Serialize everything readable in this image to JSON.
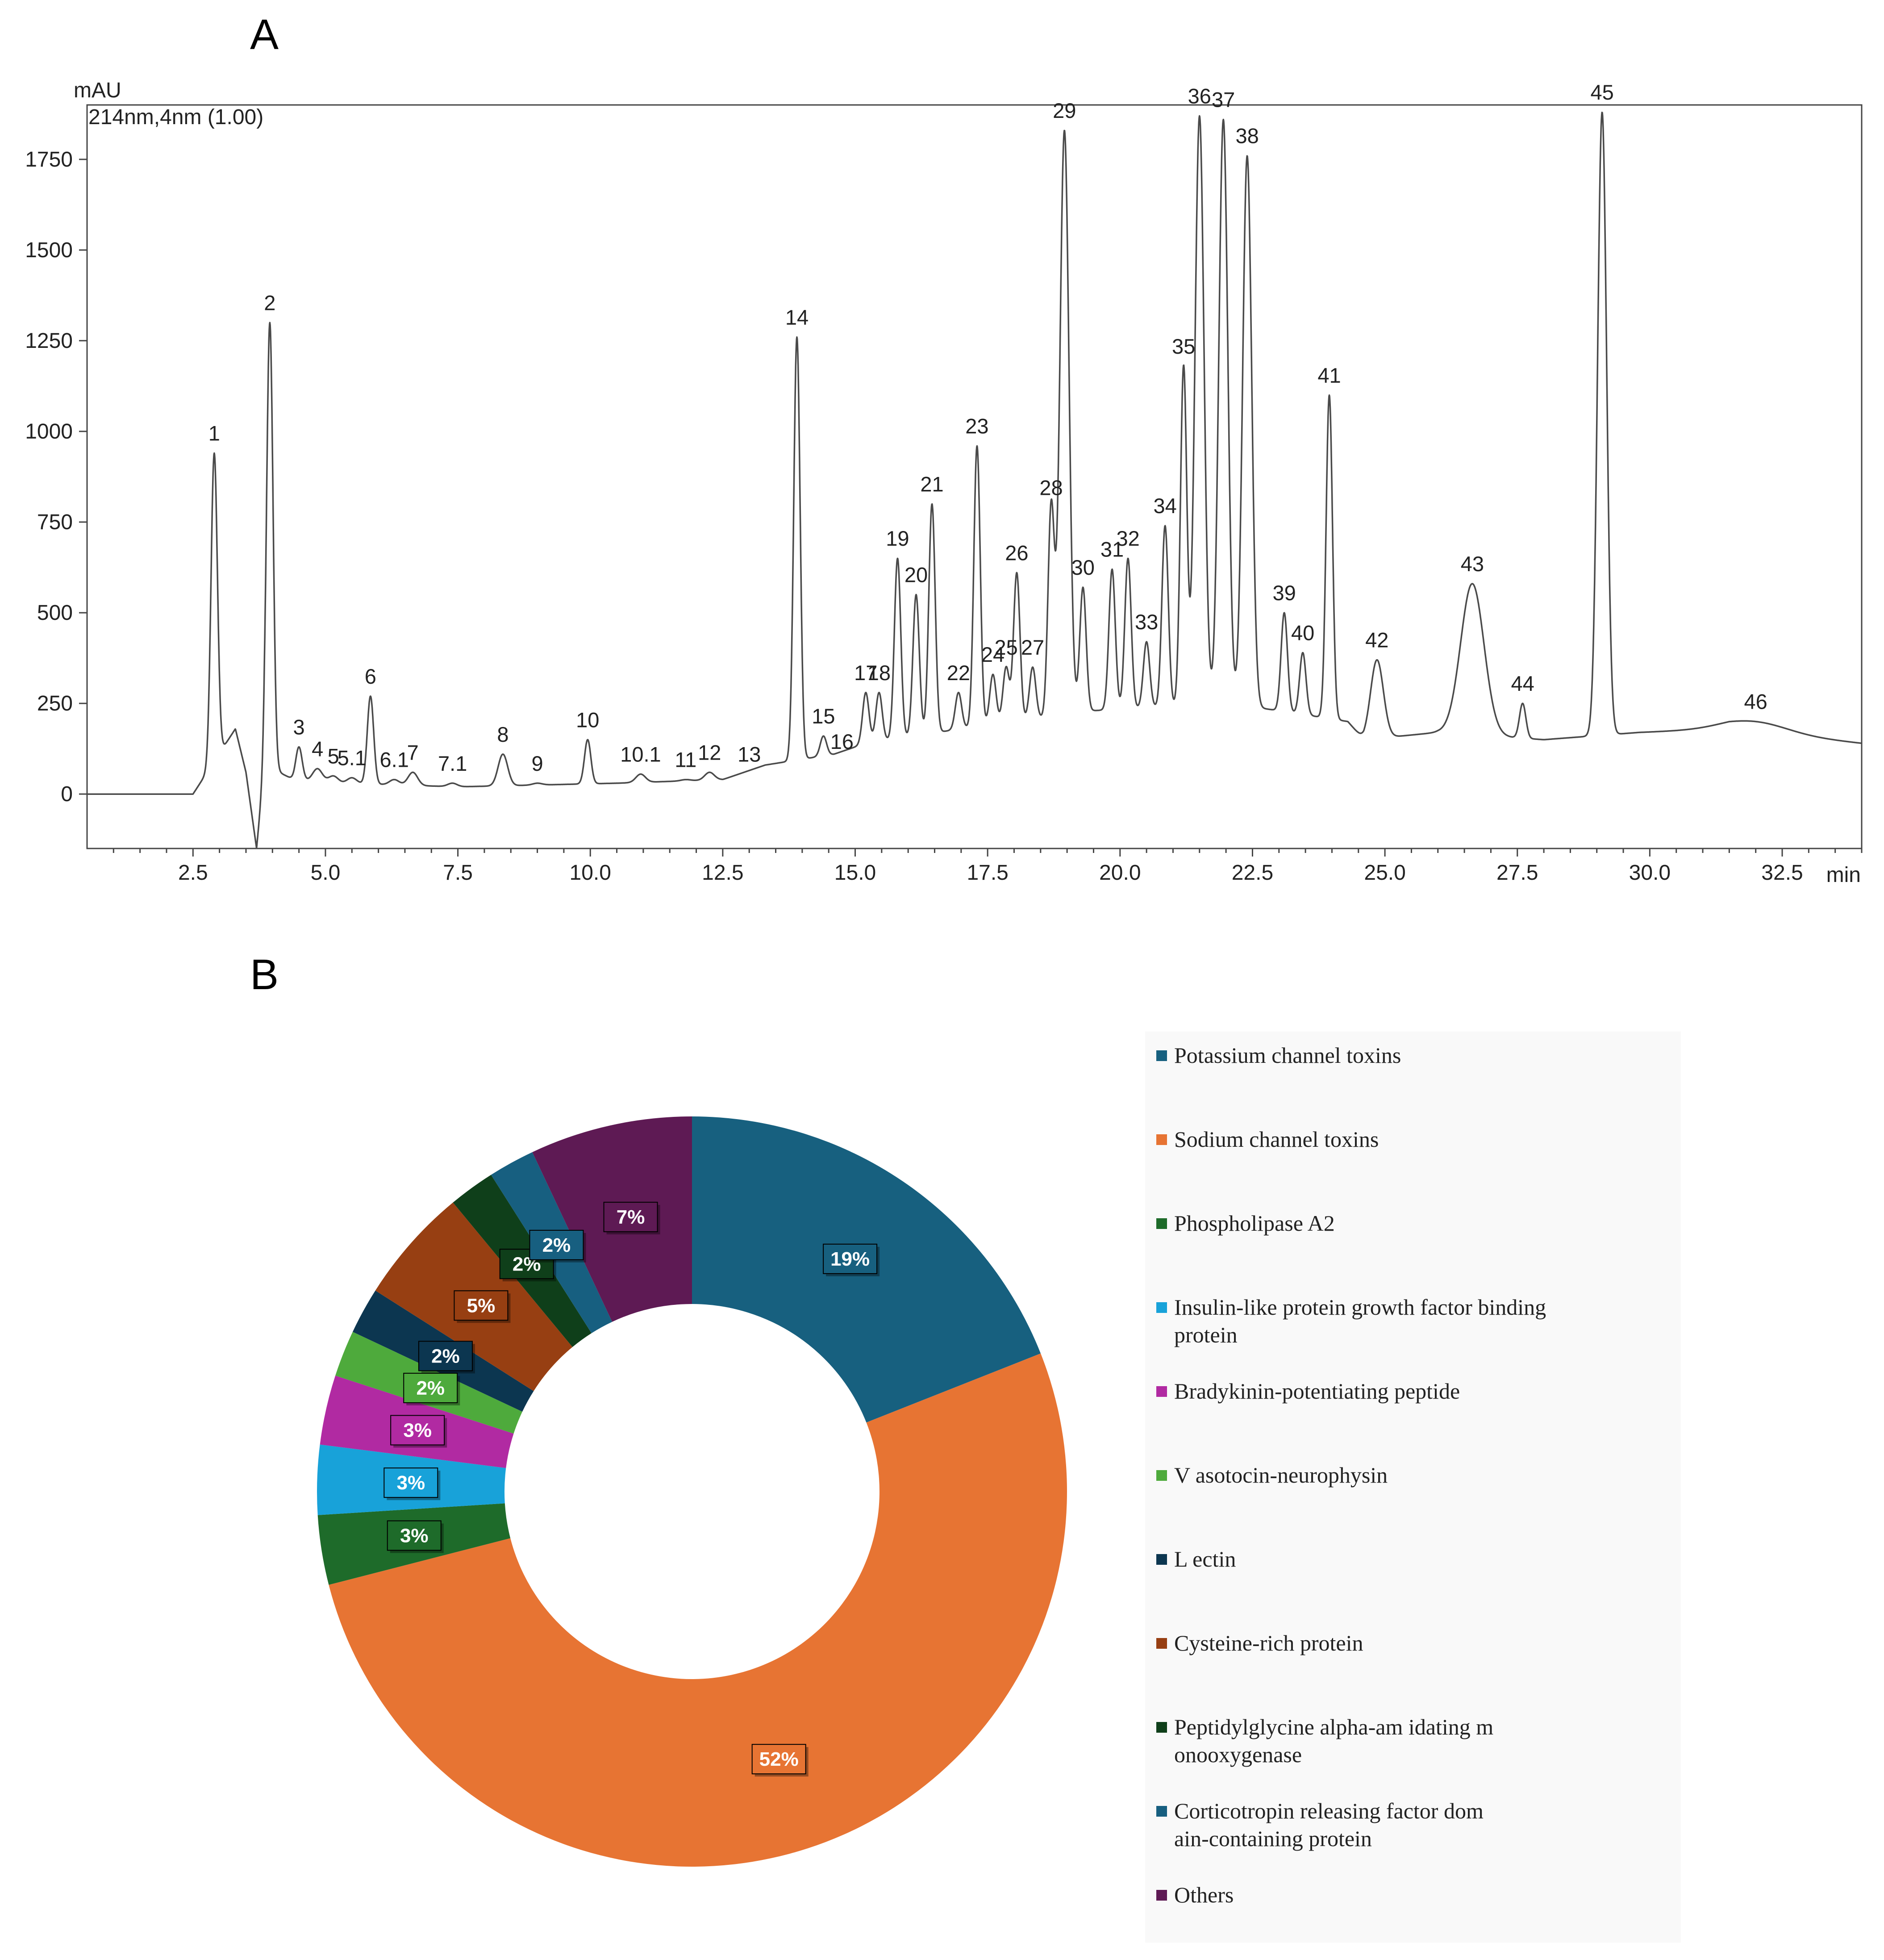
{
  "panel_a_label": "A",
  "panel_b_label": "B",
  "chart_data": [
    {
      "type": "line",
      "title": "",
      "ylabel": "mAU",
      "xlabel": "min",
      "wavelength_label": "214nm,4nm (1.00)",
      "xlim": [
        0.5,
        34.0
      ],
      "ylim": [
        -150,
        1900
      ],
      "x_ticks": [
        2.5,
        5.0,
        7.5,
        10.0,
        12.5,
        15.0,
        17.5,
        20.0,
        22.5,
        25.0,
        27.5,
        30.0,
        32.5
      ],
      "x_tick_labels": [
        "2.5",
        "5.0",
        "7.5",
        "10.0",
        "12.5",
        "15.0",
        "17.5",
        "20.0",
        "22.5",
        "25.0",
        "27.5",
        "30.0",
        "32.5"
      ],
      "y_ticks": [
        0,
        250,
        500,
        750,
        1000,
        1250,
        1500,
        1750
      ],
      "y_tick_labels": [
        "0",
        "250",
        "500",
        "750",
        "1000",
        "1250",
        "1500",
        "1750"
      ],
      "baseline": [
        [
          0.5,
          0
        ],
        [
          2.5,
          0
        ],
        [
          3.3,
          180
        ],
        [
          3.5,
          60
        ],
        [
          3.7,
          -150
        ],
        [
          3.85,
          80
        ],
        [
          4.4,
          40
        ],
        [
          5.3,
          30
        ],
        [
          7.5,
          20
        ],
        [
          10.5,
          30
        ],
        [
          12.5,
          40
        ],
        [
          13.3,
          80
        ],
        [
          14.6,
          110
        ],
        [
          15.2,
          140
        ],
        [
          17.0,
          180
        ],
        [
          19.5,
          230
        ],
        [
          22.0,
          250
        ],
        [
          23.0,
          230
        ],
        [
          24.3,
          200
        ],
        [
          24.6,
          150
        ],
        [
          26.0,
          170
        ],
        [
          28.0,
          150
        ],
        [
          29.8,
          170
        ],
        [
          31.5,
          180
        ],
        [
          34.0,
          140
        ]
      ],
      "peaks": [
        {
          "label": "1",
          "x": 2.9,
          "y": 940
        },
        {
          "label": "2",
          "x": 3.95,
          "y": 1300
        },
        {
          "label": "3",
          "x": 4.5,
          "y": 130
        },
        {
          "label": "4",
          "x": 4.85,
          "y": 70
        },
        {
          "label": "5",
          "x": 5.15,
          "y": 50
        },
        {
          "label": "5.1",
          "x": 5.5,
          "y": 45
        },
        {
          "label": "6",
          "x": 5.85,
          "y": 270
        },
        {
          "label": "6.1",
          "x": 6.3,
          "y": 40
        },
        {
          "label": "7",
          "x": 6.65,
          "y": 60
        },
        {
          "label": "7.1",
          "x": 7.4,
          "y": 30
        },
        {
          "label": "8",
          "x": 8.35,
          "y": 110
        },
        {
          "label": "9",
          "x": 9.0,
          "y": 30
        },
        {
          "label": "10",
          "x": 9.95,
          "y": 150
        },
        {
          "label": "10.1",
          "x": 10.95,
          "y": 55
        },
        {
          "label": "11",
          "x": 11.8,
          "y": 40
        },
        {
          "label": "12",
          "x": 12.25,
          "y": 60
        },
        {
          "label": "13",
          "x": 13.0,
          "y": 55
        },
        {
          "label": "14",
          "x": 13.9,
          "y": 1260
        },
        {
          "label": "15",
          "x": 14.4,
          "y": 160
        },
        {
          "label": "16",
          "x": 14.75,
          "y": 90
        },
        {
          "label": "17",
          "x": 15.2,
          "y": 280
        },
        {
          "label": "18",
          "x": 15.45,
          "y": 280
        },
        {
          "label": "19",
          "x": 15.8,
          "y": 650
        },
        {
          "label": "20",
          "x": 16.15,
          "y": 550
        },
        {
          "label": "21",
          "x": 16.45,
          "y": 800
        },
        {
          "label": "22",
          "x": 16.95,
          "y": 280
        },
        {
          "label": "23",
          "x": 17.3,
          "y": 960
        },
        {
          "label": "24",
          "x": 17.6,
          "y": 330
        },
        {
          "label": "25",
          "x": 17.85,
          "y": 350
        },
        {
          "label": "26",
          "x": 18.05,
          "y": 610
        },
        {
          "label": "27",
          "x": 18.35,
          "y": 350
        },
        {
          "label": "28",
          "x": 18.7,
          "y": 790
        },
        {
          "label": "29",
          "x": 18.95,
          "y": 1830
        },
        {
          "label": "30",
          "x": 19.3,
          "y": 570
        },
        {
          "label": "31",
          "x": 19.85,
          "y": 620
        },
        {
          "label": "32",
          "x": 20.15,
          "y": 650
        },
        {
          "label": "33",
          "x": 20.5,
          "y": 420
        },
        {
          "label": "34",
          "x": 20.85,
          "y": 740
        },
        {
          "label": "35",
          "x": 21.2,
          "y": 1180
        },
        {
          "label": "36",
          "x": 21.5,
          "y": 1870
        },
        {
          "label": "37",
          "x": 21.95,
          "y": 1860
        },
        {
          "label": "38",
          "x": 22.4,
          "y": 1760
        },
        {
          "label": "39",
          "x": 23.1,
          "y": 500
        },
        {
          "label": "40",
          "x": 23.45,
          "y": 390
        },
        {
          "label": "41",
          "x": 23.95,
          "y": 1100
        },
        {
          "label": "42",
          "x": 24.85,
          "y": 370
        },
        {
          "label": "43",
          "x": 26.65,
          "y": 580
        },
        {
          "label": "44",
          "x": 27.6,
          "y": 250
        },
        {
          "label": "45",
          "x": 29.1,
          "y": 1880
        },
        {
          "label": "46",
          "x": 32.0,
          "y": 200
        }
      ]
    },
    {
      "type": "pie",
      "variant": "doughnut",
      "categories": [
        "Potassium channel toxins",
        "Sodium channel toxins",
        "Phospholipase A2",
        "Insulin-like protein growth factor binding protein",
        "Bradykinin-potentiating peptide",
        "Vasotocin-neurophysin",
        "Lectin",
        "Cysteine-rich protein",
        "Peptidylglycine alpha-amidating monooxygenase",
        "Corticotropin releasing factor domain-containing protein",
        "Others"
      ],
      "legend_labels": [
        "Potassium channel toxins",
        "Sodium channel toxins",
        "Phospholipase A2",
        "Insulin-like protein growth factor binding protein",
        "Bradykinin-potentiating peptide",
        "V asotocin-neurophysin",
        "L ectin",
        "Cysteine-rich protein",
        "Peptidylglycine alpha-am idating m onooxygenase",
        "Corticotropin releasing factor dom ain-containing protein",
        "Others"
      ],
      "values": [
        19,
        52,
        3,
        3,
        3,
        2,
        2,
        5,
        2,
        2,
        7
      ],
      "value_labels": [
        "19%",
        "52%",
        "3%",
        "3%",
        "3%",
        "2%",
        "2%",
        "5%",
        "2%",
        "2%",
        "7%"
      ],
      "colors": [
        "#17607f",
        "#e77433",
        "#1e6b2a",
        "#18a2d9",
        "#b12aa2",
        "#4eaa3c",
        "#0c3650",
        "#973f12",
        "#0f3f1a",
        "#175f80",
        "#5e1a54"
      ],
      "legend_position": "right",
      "start_angle_deg": 0,
      "direction": "clockwise"
    }
  ]
}
